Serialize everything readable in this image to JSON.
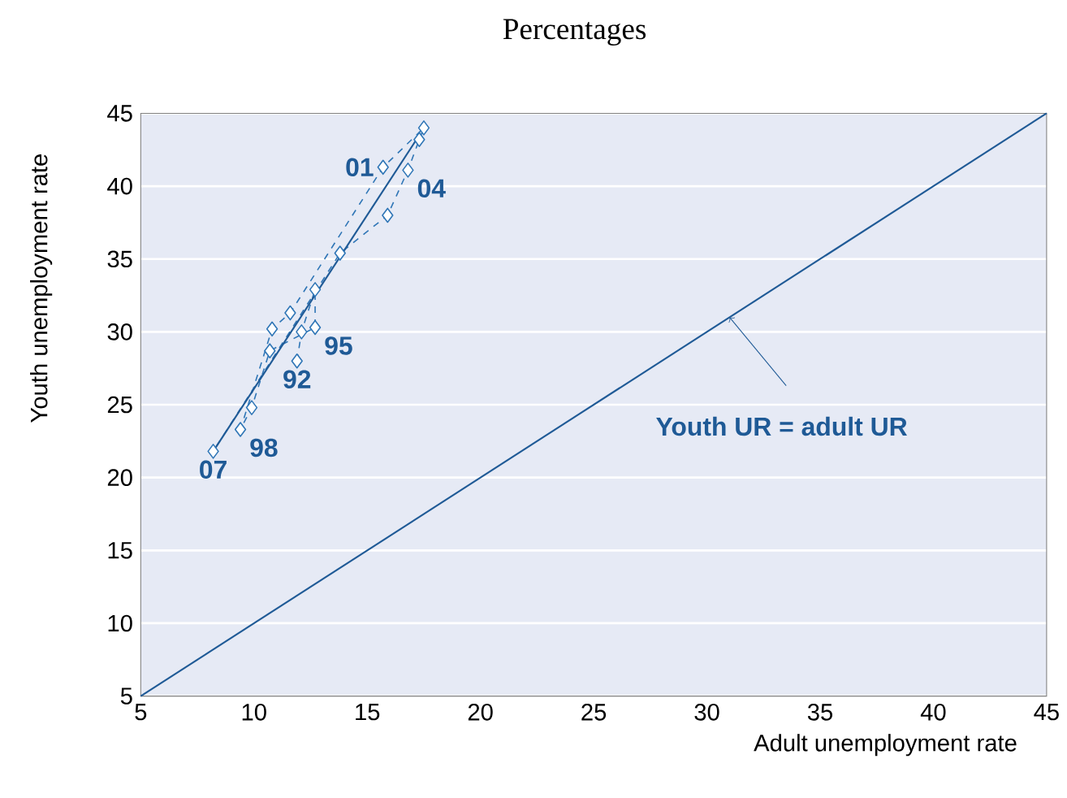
{
  "chart_data": {
    "type": "line",
    "title": "Percentages",
    "xlabel": "Adult unemployment rate",
    "ylabel": "Youth unemployment rate",
    "x": [
      11.9,
      12.1,
      12.7,
      12.7,
      10.7,
      9.9,
      9.4,
      10.8,
      11.6,
      15.7,
      17.5,
      17.3,
      16.8,
      15.9,
      13.8,
      8.2
    ],
    "series": [
      {
        "color": "#2e75b6",
        "values": [
          28.0,
          30.0,
          32.9,
          30.3,
          28.7,
          24.8,
          23.3,
          30.2,
          31.3,
          41.3,
          44.0,
          43.2,
          41.1,
          38.0,
          35.4,
          21.8
        ],
        "marker": "diamond",
        "line_style": "dashed"
      },
      {
        "type": "line",
        "color": "#1f5a96",
        "x": [
          8.2,
          17.3
        ],
        "values": [
          21.8,
          43.5
        ],
        "marker": "none",
        "line_style": "solid"
      },
      {
        "type": "line",
        "color": "#1f5a96",
        "x": [
          5,
          45
        ],
        "values": [
          5,
          45
        ],
        "marker": "none",
        "line_style": "solid"
      }
    ],
    "annotations": [
      {
        "text": "92",
        "x": 11.9,
        "y": 28.0
      },
      {
        "text": "95",
        "x": 12.7,
        "y": 30.3
      },
      {
        "text": "98",
        "x": 9.4,
        "y": 23.3
      },
      {
        "text": "01",
        "x": 15.7,
        "y": 41.3
      },
      {
        "text": "04",
        "x": 16.8,
        "y": 41.1
      },
      {
        "text": "07",
        "x": 8.2,
        "y": 21.8
      },
      {
        "text": "Youth UR = adult UR",
        "x": 31,
        "y": 31
      }
    ],
    "xlim": [
      5,
      45
    ],
    "ylim": [
      5,
      45
    ],
    "xticks": [
      5,
      10,
      15,
      20,
      25,
      30,
      35,
      40,
      45
    ],
    "yticks": [
      5,
      10,
      15,
      20,
      25,
      30,
      35,
      40,
      45
    ],
    "grid": "y"
  }
}
